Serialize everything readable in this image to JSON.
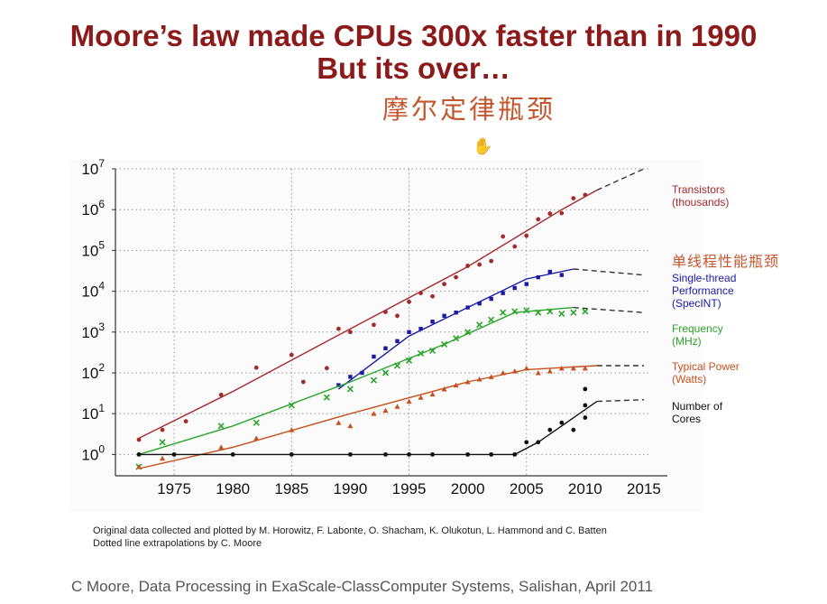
{
  "slide": {
    "title_line1": "Moore’s law made CPUs 300x faster than in 1990",
    "title_line2": "But its over…",
    "annotation_main": "摩尔定律瓶颈",
    "annotation_single_thread": "单线程性能瓶颈",
    "credit_line1": "Original data collected and plotted by M. Horowitz, F. Labonte, O. Shacham, K. Olukotun, L. Hammond and C. Batten",
    "credit_line2": "Dotted line extrapolations by C. Moore",
    "footer": "C Moore, Data Processing in ExaScale-ClassComputer Systems, Salishan, April 2011"
  },
  "chart_data": {
    "type": "scatter",
    "title": "",
    "xlabel": "",
    "ylabel": "",
    "y_scale": "log",
    "xlim": [
      1970,
      2017
    ],
    "ylim": [
      0.3,
      10000000
    ],
    "x_ticks": [
      "1975",
      "1980",
      "1985",
      "1990",
      "1995",
      "2000",
      "2005",
      "2010",
      "2015"
    ],
    "y_ticks": [
      {
        "value": 1,
        "base": "10",
        "exp": "0"
      },
      {
        "value": 10,
        "base": "10",
        "exp": "1"
      },
      {
        "value": 100,
        "base": "10",
        "exp": "2"
      },
      {
        "value": 1000,
        "base": "10",
        "exp": "3"
      },
      {
        "value": 10000,
        "base": "10",
        "exp": "4"
      },
      {
        "value": 100000,
        "base": "10",
        "exp": "5"
      },
      {
        "value": 1000000,
        "base": "10",
        "exp": "6"
      },
      {
        "value": 10000000,
        "base": "10",
        "exp": "7"
      }
    ],
    "grid": true,
    "legend_position": "right",
    "series": [
      {
        "name": "Transistors\n(thousands)",
        "color": "#a52a2a",
        "marker": "circle",
        "points": [
          [
            1972,
            2.3
          ],
          [
            1974,
            4
          ],
          [
            1976,
            6.5
          ],
          [
            1979,
            29
          ],
          [
            1982,
            134
          ],
          [
            1985,
            275
          ],
          [
            1986,
            60
          ],
          [
            1988,
            130
          ],
          [
            1989,
            1200
          ],
          [
            1990,
            1000
          ],
          [
            1992,
            1500
          ],
          [
            1993,
            3100
          ],
          [
            1994,
            2500
          ],
          [
            1995,
            5500
          ],
          [
            1996,
            9000
          ],
          [
            1997,
            7500
          ],
          [
            1998,
            15000
          ],
          [
            1999,
            22000
          ],
          [
            2000,
            42000
          ],
          [
            2001,
            45000
          ],
          [
            2002,
            55000
          ],
          [
            2003,
            220000
          ],
          [
            2004,
            125000
          ],
          [
            2005,
            230000
          ],
          [
            2006,
            580000
          ],
          [
            2007,
            800000
          ],
          [
            2008,
            820000
          ],
          [
            2009,
            1900000
          ],
          [
            2010,
            2300000
          ]
        ],
        "trend": [
          [
            1972,
            2.5
          ],
          [
            1980,
            35
          ],
          [
            1990,
            1200
          ],
          [
            2000,
            40000
          ],
          [
            2008,
            1000000
          ],
          [
            2011,
            3000000
          ]
        ],
        "extrapolation": [
          [
            2011,
            3000000
          ],
          [
            2015,
            10000000
          ]
        ]
      },
      {
        "name": "Single-thread\nPerformance\n(SpecINT)",
        "color": "#1a1aa6",
        "marker": "square",
        "points": [
          [
            1989,
            50
          ],
          [
            1990,
            80
          ],
          [
            1991,
            100
          ],
          [
            1992,
            250
          ],
          [
            1993,
            400
          ],
          [
            1994,
            600
          ],
          [
            1995,
            1000
          ],
          [
            1996,
            1200
          ],
          [
            1997,
            1800
          ],
          [
            1998,
            2500
          ],
          [
            1999,
            3000
          ],
          [
            2000,
            4000
          ],
          [
            2001,
            5000
          ],
          [
            2002,
            6500
          ],
          [
            2003,
            9000
          ],
          [
            2004,
            12000
          ],
          [
            2005,
            15000
          ],
          [
            2006,
            22000
          ],
          [
            2007,
            30000
          ],
          [
            2008,
            25000
          ]
        ],
        "trend": [
          [
            1989,
            40
          ],
          [
            1995,
            800
          ],
          [
            2000,
            4000
          ],
          [
            2005,
            20000
          ],
          [
            2009,
            35000
          ]
        ],
        "extrapolation": [
          [
            2009,
            35000
          ],
          [
            2015,
            25000
          ]
        ]
      },
      {
        "name": "Frequency\n(MHz)",
        "color": "#2aa52a",
        "marker": "x",
        "points": [
          [
            1972,
            0.5
          ],
          [
            1974,
            2
          ],
          [
            1979,
            5
          ],
          [
            1982,
            6
          ],
          [
            1985,
            16
          ],
          [
            1988,
            25
          ],
          [
            1990,
            40
          ],
          [
            1992,
            66
          ],
          [
            1993,
            100
          ],
          [
            1994,
            150
          ],
          [
            1995,
            200
          ],
          [
            1996,
            300
          ],
          [
            1997,
            350
          ],
          [
            1998,
            500
          ],
          [
            1999,
            700
          ],
          [
            2000,
            1000
          ],
          [
            2001,
            1500
          ],
          [
            2002,
            2000
          ],
          [
            2003,
            3000
          ],
          [
            2004,
            3200
          ],
          [
            2005,
            3400
          ],
          [
            2006,
            3000
          ],
          [
            2007,
            3200
          ],
          [
            2008,
            2800
          ],
          [
            2009,
            3000
          ],
          [
            2010,
            3200
          ]
        ],
        "trend": [
          [
            1972,
            1
          ],
          [
            1980,
            5
          ],
          [
            1990,
            60
          ],
          [
            1998,
            500
          ],
          [
            2004,
            3000
          ],
          [
            2009,
            4000
          ]
        ],
        "extrapolation": [
          [
            2009,
            4000
          ],
          [
            2015,
            3000
          ]
        ]
      },
      {
        "name": "Typical Power\n(Watts)",
        "color": "#c8501e",
        "marker": "triangle",
        "points": [
          [
            1972,
            0.5
          ],
          [
            1974,
            0.8
          ],
          [
            1979,
            1.5
          ],
          [
            1982,
            2.5
          ],
          [
            1985,
            4
          ],
          [
            1989,
            6
          ],
          [
            1990,
            5
          ],
          [
            1992,
            10
          ],
          [
            1993,
            12
          ],
          [
            1994,
            15
          ],
          [
            1995,
            20
          ],
          [
            1996,
            25
          ],
          [
            1997,
            30
          ],
          [
            1998,
            40
          ],
          [
            1999,
            50
          ],
          [
            2000,
            60
          ],
          [
            2001,
            70
          ],
          [
            2002,
            80
          ],
          [
            2003,
            100
          ],
          [
            2004,
            110
          ],
          [
            2005,
            130
          ],
          [
            2006,
            100
          ],
          [
            2007,
            110
          ],
          [
            2008,
            130
          ],
          [
            2009,
            130
          ],
          [
            2010,
            130
          ]
        ],
        "trend": [
          [
            1972,
            0.45
          ],
          [
            1980,
            1.5
          ],
          [
            1990,
            10
          ],
          [
            2000,
            60
          ],
          [
            2005,
            120
          ],
          [
            2011,
            150
          ]
        ],
        "extrapolation": [
          [
            2011,
            150
          ],
          [
            2015,
            150
          ]
        ]
      },
      {
        "name": "Number of\nCores",
        "color": "#111111",
        "marker": "circle",
        "points": [
          [
            1972,
            1
          ],
          [
            1975,
            1
          ],
          [
            1980,
            1
          ],
          [
            1985,
            1
          ],
          [
            1990,
            1
          ],
          [
            1993,
            1
          ],
          [
            1995,
            1
          ],
          [
            1997,
            1
          ],
          [
            2000,
            1
          ],
          [
            2002,
            1
          ],
          [
            2004,
            1
          ],
          [
            2005,
            2
          ],
          [
            2006,
            2
          ],
          [
            2007,
            4
          ],
          [
            2008,
            6
          ],
          [
            2009,
            4
          ],
          [
            2010,
            8
          ],
          [
            2010,
            16
          ],
          [
            2010,
            40
          ]
        ],
        "trend": [
          [
            1972,
            1
          ],
          [
            2004,
            1
          ],
          [
            2006,
            2
          ],
          [
            2008,
            5
          ],
          [
            2011,
            20
          ]
        ],
        "extrapolation": [
          [
            2011,
            20
          ],
          [
            2015,
            22
          ]
        ]
      }
    ]
  }
}
